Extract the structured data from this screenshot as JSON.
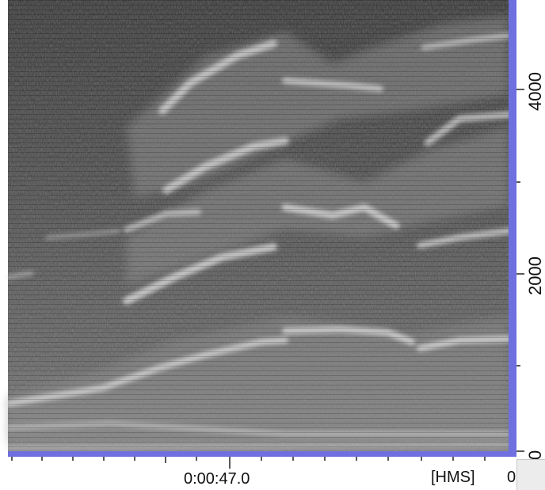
{
  "time_axis": {
    "cursor_time": "0:00:47.0",
    "unit": "[HMS]",
    "unit_cut": "0"
  },
  "freq_axis": {
    "labels": [
      "4000",
      "2000",
      "0"
    ]
  },
  "colors": {
    "frame": "#6f6fe0",
    "background": "#ffffff",
    "spectrogram_base": "#4a4a4a"
  }
}
